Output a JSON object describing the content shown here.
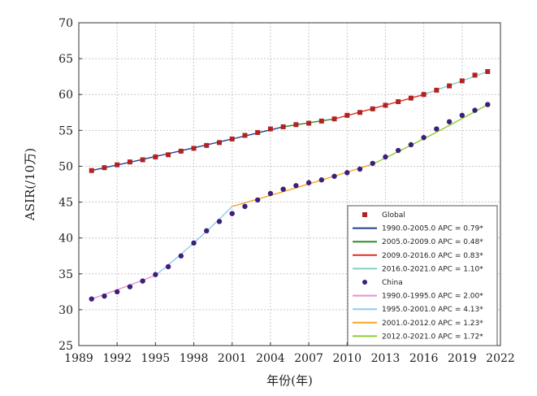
{
  "chart_data": {
    "type": "line",
    "xlabel": "年份(年)",
    "ylabel": "ASIR(/10万)",
    "xlim": [
      1989,
      2022
    ],
    "ylim": [
      25,
      70
    ],
    "xticks": [
      "1989",
      "1992",
      "1995",
      "1998",
      "2001",
      "2004",
      "2007",
      "2010",
      "2013",
      "2016",
      "2019",
      "2022"
    ],
    "yticks": [
      "25",
      "30",
      "35",
      "40",
      "45",
      "50",
      "55",
      "60",
      "65",
      "70"
    ],
    "grid": true,
    "legend_position": "bottom-right",
    "series": [
      {
        "name": "Global",
        "color": "#b22222",
        "marker": "square",
        "x": [
          1990,
          1991,
          1992,
          1993,
          1994,
          1995,
          1996,
          1997,
          1998,
          1999,
          2000,
          2001,
          2002,
          2003,
          2004,
          2005,
          2006,
          2007,
          2008,
          2009,
          2010,
          2011,
          2012,
          2013,
          2014,
          2015,
          2016,
          2017,
          2018,
          2019,
          2020,
          2021
        ],
        "y": [
          49.4,
          49.8,
          50.2,
          50.6,
          50.9,
          51.3,
          51.6,
          52.1,
          52.5,
          52.9,
          53.3,
          53.8,
          54.3,
          54.7,
          55.2,
          55.5,
          55.8,
          56.0,
          56.3,
          56.6,
          57.1,
          57.5,
          58.0,
          58.5,
          59.0,
          59.5,
          60.0,
          60.6,
          61.2,
          61.9,
          62.7,
          63.2
        ],
        "joinpoints": [
          {
            "label": "1990.0-2005.0 APC  = 0.79*",
            "color": "#1f3f8f",
            "x": [
              1990,
              2005
            ],
            "y": [
              49.4,
              55.5
            ]
          },
          {
            "label": "2005.0-2009.0 APC  = 0.48*",
            "color": "#2e8b2e",
            "x": [
              2005,
              2009
            ],
            "y": [
              55.5,
              56.6
            ]
          },
          {
            "label": "2009.0-2016.0 APC  = 0.83*",
            "color": "#e03020",
            "x": [
              2009,
              2016
            ],
            "y": [
              56.6,
              60.0
            ]
          },
          {
            "label": "2016.0-2021.0 APC  = 1.10*",
            "color": "#7fd0c0",
            "x": [
              2016,
              2021
            ],
            "y": [
              60.0,
              63.2
            ]
          }
        ]
      },
      {
        "name": "China",
        "color": "#3b1f7a",
        "marker": "circle",
        "x": [
          1990,
          1991,
          1992,
          1993,
          1994,
          1995,
          1996,
          1997,
          1998,
          1999,
          2000,
          2001,
          2002,
          2003,
          2004,
          2005,
          2006,
          2007,
          2008,
          2009,
          2010,
          2011,
          2012,
          2013,
          2014,
          2015,
          2016,
          2017,
          2018,
          2019,
          2020,
          2021
        ],
        "y": [
          31.5,
          31.9,
          32.5,
          33.2,
          34.0,
          34.9,
          36.0,
          37.5,
          39.3,
          41.0,
          42.3,
          43.4,
          44.4,
          45.3,
          46.2,
          46.8,
          47.3,
          47.7,
          48.1,
          48.6,
          49.1,
          49.6,
          50.4,
          51.3,
          52.2,
          53.0,
          54.0,
          55.2,
          56.2,
          57.1,
          57.8,
          58.6
        ],
        "joinpoints": [
          {
            "label": "1990.0-1995.0 APC  = 2.00*",
            "color": "#e58fd0",
            "x": [
              1990,
              1995
            ],
            "y": [
              31.5,
              34.8
            ]
          },
          {
            "label": "1995.0-2001.0 APC  = 4.13*",
            "color": "#8fcaf0",
            "x": [
              1995,
              2001
            ],
            "y": [
              34.8,
              44.4
            ]
          },
          {
            "label": "2001.0-2012.0 APC  = 1.23*",
            "color": "#f5a623",
            "x": [
              2001,
              2012
            ],
            "y": [
              44.4,
              50.3
            ]
          },
          {
            "label": "2012.0-2021.0 APC  = 1.72*",
            "color": "#8fcc2e",
            "x": [
              2012,
              2021
            ],
            "y": [
              50.3,
              58.6
            ]
          }
        ]
      }
    ]
  }
}
